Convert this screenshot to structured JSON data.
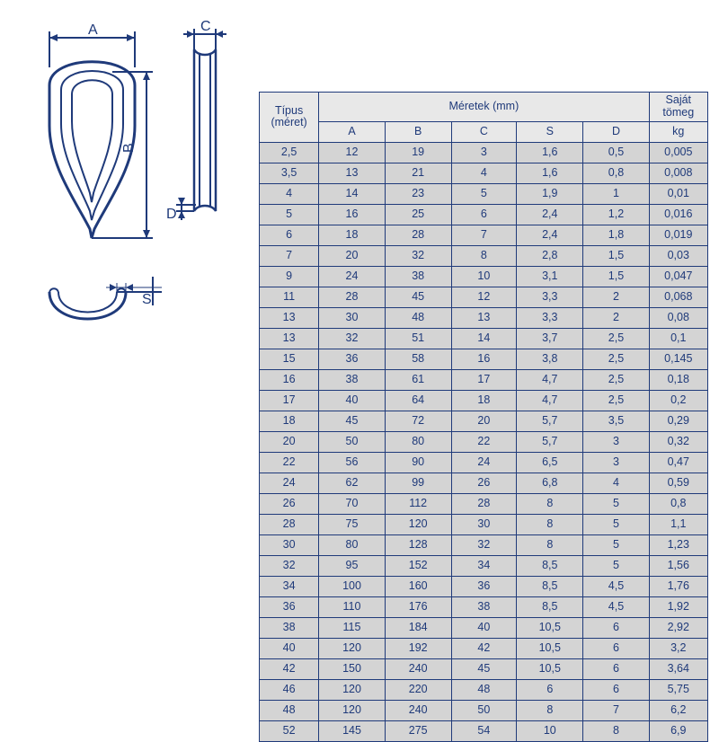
{
  "diagram": {
    "labels": {
      "A": "A",
      "B": "B",
      "C": "C",
      "D": "D",
      "S": "S"
    },
    "stroke": "#1f3a7a",
    "fill": "#ffffff",
    "line_width": 2,
    "font_size": 16,
    "font_family": "Arial"
  },
  "table": {
    "header": {
      "type": "Típus (méret)",
      "dims": "Méretek (mm)",
      "weight_top": "Saját tömeg",
      "weight_unit": "kg",
      "A": "A",
      "B": "B",
      "C": "C",
      "S": "S",
      "D": "D"
    },
    "header_bg": "#e8e8e8",
    "row_bg": "#d4d4d4",
    "border_color": "#1f3a7a",
    "text_color": "#1f3a7a",
    "font_size": 12.5,
    "columns": [
      "type",
      "A",
      "B",
      "C",
      "S",
      "D",
      "kg"
    ],
    "rows": [
      [
        "2,5",
        "12",
        "19",
        "3",
        "1,6",
        "0,5",
        "0,005"
      ],
      [
        "3,5",
        "13",
        "21",
        "4",
        "1,6",
        "0,8",
        "0,008"
      ],
      [
        "4",
        "14",
        "23",
        "5",
        "1,9",
        "1",
        "0,01"
      ],
      [
        "5",
        "16",
        "25",
        "6",
        "2,4",
        "1,2",
        "0,016"
      ],
      [
        "6",
        "18",
        "28",
        "7",
        "2,4",
        "1,8",
        "0,019"
      ],
      [
        "7",
        "20",
        "32",
        "8",
        "2,8",
        "1,5",
        "0,03"
      ],
      [
        "9",
        "24",
        "38",
        "10",
        "3,1",
        "1,5",
        "0,047"
      ],
      [
        "11",
        "28",
        "45",
        "12",
        "3,3",
        "2",
        "0,068"
      ],
      [
        "13",
        "30",
        "48",
        "13",
        "3,3",
        "2",
        "0,08"
      ],
      [
        "13",
        "32",
        "51",
        "14",
        "3,7",
        "2,5",
        "0,1"
      ],
      [
        "15",
        "36",
        "58",
        "16",
        "3,8",
        "2,5",
        "0,145"
      ],
      [
        "16",
        "38",
        "61",
        "17",
        "4,7",
        "2,5",
        "0,18"
      ],
      [
        "17",
        "40",
        "64",
        "18",
        "4,7",
        "2,5",
        "0,2"
      ],
      [
        "18",
        "45",
        "72",
        "20",
        "5,7",
        "3,5",
        "0,29"
      ],
      [
        "20",
        "50",
        "80",
        "22",
        "5,7",
        "3",
        "0,32"
      ],
      [
        "22",
        "56",
        "90",
        "24",
        "6,5",
        "3",
        "0,47"
      ],
      [
        "24",
        "62",
        "99",
        "26",
        "6,8",
        "4",
        "0,59"
      ],
      [
        "26",
        "70",
        "112",
        "28",
        "8",
        "5",
        "0,8"
      ],
      [
        "28",
        "75",
        "120",
        "30",
        "8",
        "5",
        "1,1"
      ],
      [
        "30",
        "80",
        "128",
        "32",
        "8",
        "5",
        "1,23"
      ],
      [
        "32",
        "95",
        "152",
        "34",
        "8,5",
        "5",
        "1,56"
      ],
      [
        "34",
        "100",
        "160",
        "36",
        "8,5",
        "4,5",
        "1,76"
      ],
      [
        "36",
        "110",
        "176",
        "38",
        "8,5",
        "4,5",
        "1,92"
      ],
      [
        "38",
        "115",
        "184",
        "40",
        "10,5",
        "6",
        "2,92"
      ],
      [
        "40",
        "120",
        "192",
        "42",
        "10,5",
        "6",
        "3,2"
      ],
      [
        "42",
        "150",
        "240",
        "45",
        "10,5",
        "6",
        "3,64"
      ],
      [
        "46",
        "120",
        "220",
        "48",
        "6",
        "6",
        "5,75"
      ],
      [
        "48",
        "120",
        "240",
        "50",
        "8",
        "7",
        "6,2"
      ],
      [
        "52",
        "145",
        "275",
        "54",
        "10",
        "8",
        "6,9"
      ]
    ]
  }
}
